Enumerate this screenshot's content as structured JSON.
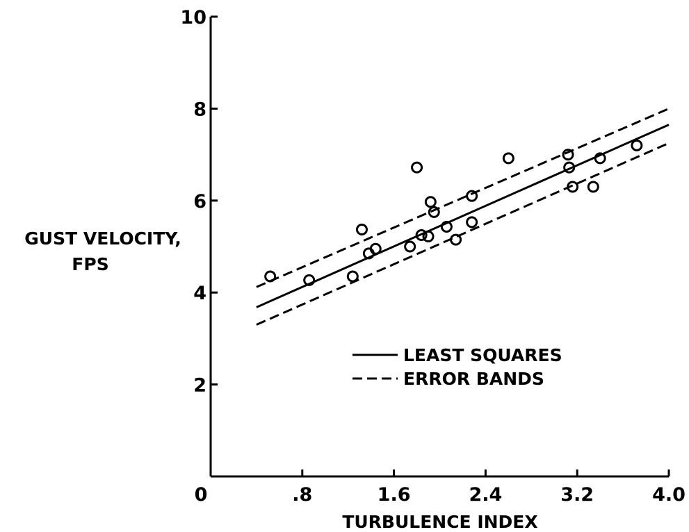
{
  "chart_data": {
    "type": "scatter",
    "title": "",
    "xlabel": "TURBULENCE INDEX",
    "ylabel": [
      "GUST VELOCITY,",
      "FPS"
    ],
    "xlim": [
      0,
      4.0
    ],
    "ylim": [
      0,
      10
    ],
    "xticks": [
      0,
      0.8,
      1.6,
      2.4,
      3.2,
      4.0
    ],
    "xtick_labels": [
      "0",
      ".8",
      "1.6",
      "2.4",
      "3.2",
      "4.0"
    ],
    "yticks": [
      2,
      4,
      6,
      8,
      10
    ],
    "ytick_labels": [
      "2",
      "4",
      "6",
      "8",
      "10"
    ],
    "grid": false,
    "legend_position": "center-right",
    "series": [
      {
        "name": "",
        "kind": "points",
        "marker": "open-circle",
        "points": [
          {
            "x": 0.52,
            "y": 4.35
          },
          {
            "x": 0.86,
            "y": 4.27
          },
          {
            "x": 1.24,
            "y": 4.35
          },
          {
            "x": 1.32,
            "y": 5.37
          },
          {
            "x": 1.38,
            "y": 4.85
          },
          {
            "x": 1.44,
            "y": 4.95
          },
          {
            "x": 1.74,
            "y": 5.0
          },
          {
            "x": 1.8,
            "y": 6.72
          },
          {
            "x": 1.84,
            "y": 5.25
          },
          {
            "x": 1.9,
            "y": 5.22
          },
          {
            "x": 1.92,
            "y": 5.97
          },
          {
            "x": 1.95,
            "y": 5.75
          },
          {
            "x": 2.06,
            "y": 5.43
          },
          {
            "x": 2.14,
            "y": 5.15
          },
          {
            "x": 2.28,
            "y": 6.1
          },
          {
            "x": 2.28,
            "y": 5.53
          },
          {
            "x": 2.6,
            "y": 6.92
          },
          {
            "x": 3.12,
            "y": 7.0
          },
          {
            "x": 3.13,
            "y": 6.72
          },
          {
            "x": 3.16,
            "y": 6.3
          },
          {
            "x": 3.34,
            "y": 6.3
          },
          {
            "x": 3.4,
            "y": 6.92
          },
          {
            "x": 3.72,
            "y": 7.2
          }
        ]
      },
      {
        "name": "LEAST SQUARES",
        "kind": "line",
        "style": "solid",
        "points": [
          {
            "x": 0.4,
            "y": 3.68
          },
          {
            "x": 4.0,
            "y": 7.65
          }
        ]
      },
      {
        "name": "ERROR BANDS",
        "kind": "line",
        "style": "dashed",
        "points": [
          {
            "x": 0.4,
            "y": 4.12
          },
          {
            "x": 4.0,
            "y": 8.0
          }
        ]
      },
      {
        "name": "ERROR BANDS",
        "kind": "line",
        "style": "dashed",
        "points": [
          {
            "x": 0.4,
            "y": 3.3
          },
          {
            "x": 4.0,
            "y": 7.25
          }
        ]
      }
    ],
    "legend": [
      {
        "label": "LEAST SQUARES",
        "style": "solid"
      },
      {
        "label": "ERROR BANDS",
        "style": "dashed"
      }
    ]
  }
}
